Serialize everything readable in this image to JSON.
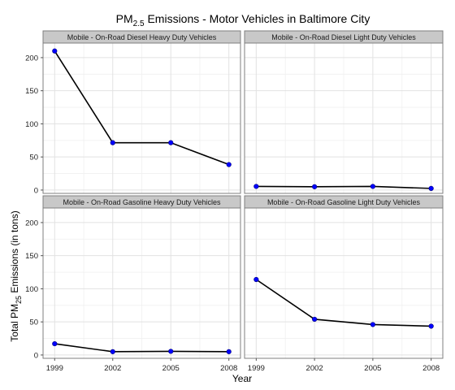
{
  "chart_data": {
    "type": "line",
    "title_main": "PM",
    "title_sub": "2.5",
    "title_rest": " Emissions - Motor Vehicles in Baltimore City",
    "xlabel": "Year",
    "ylabel_main": "Total PM",
    "ylabel_sub": "25",
    "ylabel_rest": " Emissions (in tons)",
    "x": [
      1999,
      2002,
      2005,
      2008
    ],
    "x_tick_labels": [
      "1999",
      "2002",
      "2005",
      "2008"
    ],
    "y_ticks": [
      0,
      50,
      100,
      150,
      200
    ],
    "y_tick_labels": [
      "0",
      "50",
      "100",
      "150",
      "200"
    ],
    "ylim": [
      -5,
      222
    ],
    "xlim": [
      1998.4,
      2008.6
    ],
    "grid": true,
    "colors": {
      "point": "#0000ff",
      "line": "#000000",
      "strip": "#c8c8c8"
    },
    "panels": [
      {
        "name": "Mobile - On-Road Diesel Heavy Duty Vehicles",
        "values": [
          210,
          71.5,
          71.5,
          38.5
        ]
      },
      {
        "name": "Mobile - On-Road Diesel Light Duty Vehicles",
        "values": [
          5.5,
          5,
          5.5,
          2.5
        ]
      },
      {
        "name": "Mobile - On-Road Gasoline Heavy Duty Vehicles",
        "values": [
          17,
          5,
          5.5,
          5
        ]
      },
      {
        "name": "Mobile - On-Road Gasoline Light Duty Vehicles",
        "values": [
          114,
          54,
          46,
          43.5
        ]
      }
    ]
  }
}
